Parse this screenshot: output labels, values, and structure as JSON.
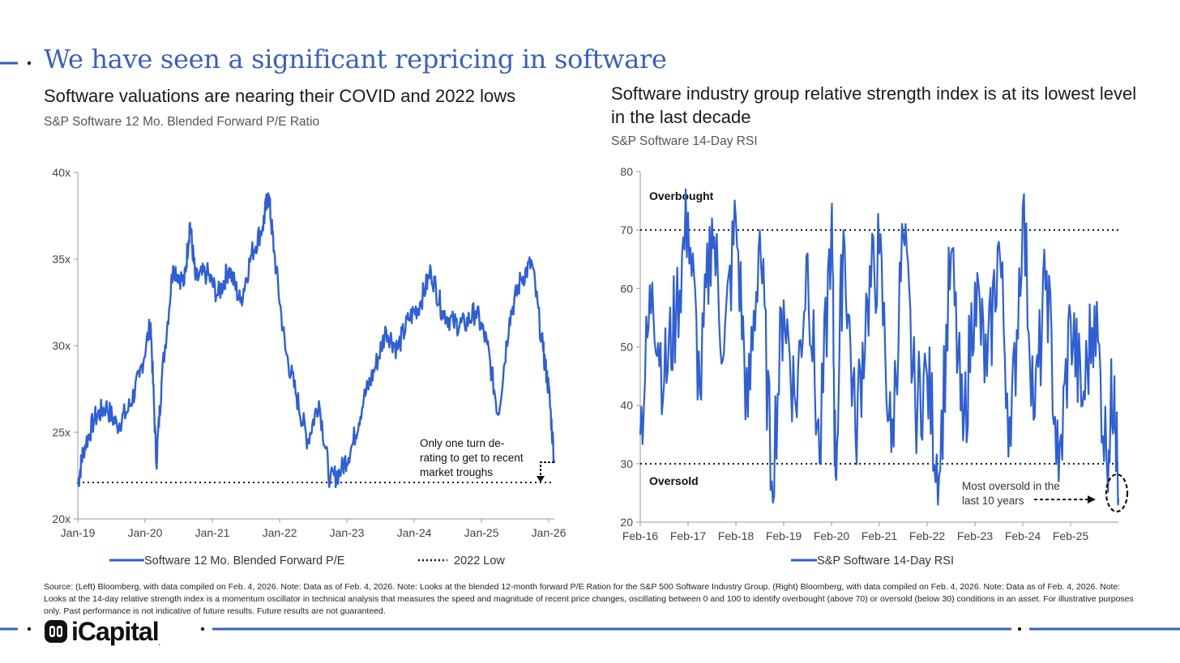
{
  "header": {
    "title": "We have seen a significant repricing in software"
  },
  "colors": {
    "accent": "#3a5fc0",
    "series": "#2e5fd6",
    "text": "#1a1a1a",
    "muted": "#555555"
  },
  "left": {
    "title": "Software valuations are nearing their COVID and 2022 lows",
    "subtitle": "S&P Software 12 Mo. Blended Forward P/E Ratio",
    "annotation": [
      "Only one turn de-",
      "rating to get to recent",
      "market troughs"
    ],
    "legend": {
      "series": "Software 12 Mo. Blended Forward P/E",
      "low": "2022 Low"
    }
  },
  "right": {
    "title": "Software industry group relative strength index is at its lowest level in the last decade",
    "subtitle": "S&P Software 14-Day RSI",
    "overbought_label": "Overbought",
    "oversold_label": "Oversold",
    "annotation": [
      "Most oversold in the",
      "last 10 years"
    ],
    "legend": {
      "series": "S&P Software 14-Day RSI"
    }
  },
  "chart_data": [
    {
      "type": "line",
      "title": "Software valuations are nearing their COVID and 2022 lows",
      "subtitle": "S&P Software 12 Mo. Blended Forward P/E Ratio",
      "x_ticks": [
        "Jan-19",
        "Jan-20",
        "Jan-21",
        "Jan-22",
        "Jan-23",
        "Jan-24",
        "Jan-25",
        "Jan-26"
      ],
      "y_ticks": [
        "20x",
        "25x",
        "30x",
        "35x",
        "40x"
      ],
      "ylim": [
        20,
        40
      ],
      "xlim": [
        "2019-01",
        "2026-02"
      ],
      "reference_line": {
        "name": "2022 Low",
        "value": 22.1
      },
      "series": [
        {
          "name": "Software 12 Mo. Blended Forward P/E",
          "x": [
            "2019-01",
            "2019-02",
            "2019-04",
            "2019-06",
            "2019-08",
            "2019-10",
            "2019-12",
            "2020-02",
            "2020-03",
            "2020-04",
            "2020-06",
            "2020-08",
            "2020-09",
            "2020-10",
            "2020-12",
            "2021-02",
            "2021-04",
            "2021-06",
            "2021-08",
            "2021-10",
            "2021-11",
            "2021-12",
            "2022-02",
            "2022-04",
            "2022-06",
            "2022-08",
            "2022-10",
            "2022-12",
            "2023-02",
            "2023-04",
            "2023-06",
            "2023-08",
            "2023-10",
            "2023-12",
            "2024-02",
            "2024-04",
            "2024-06",
            "2024-08",
            "2024-10",
            "2024-12",
            "2025-02",
            "2025-04",
            "2025-06",
            "2025-08",
            "2025-10",
            "2025-12",
            "2026-01",
            "2026-02"
          ],
          "values": [
            22.0,
            24.0,
            25.8,
            26.5,
            25.4,
            26.3,
            28.2,
            31.3,
            23.2,
            28.2,
            34.6,
            33.6,
            37.1,
            33.8,
            34.2,
            32.9,
            34.5,
            32.5,
            35.3,
            36.9,
            38.8,
            35.5,
            29.8,
            27.1,
            24.5,
            26.8,
            22.2,
            22.8,
            24.3,
            26.9,
            28.7,
            30.9,
            29.8,
            31.5,
            32.4,
            34.3,
            32.0,
            31.3,
            31.2,
            32.0,
            30.1,
            26.0,
            31.6,
            33.8,
            34.8,
            29.7,
            27.5,
            23.4
          ]
        }
      ]
    },
    {
      "type": "line",
      "title": "Software industry group relative strength index is at its lowest level in the last decade",
      "subtitle": "S&P Software 14-Day RSI",
      "x_ticks": [
        "Feb-16",
        "Feb-17",
        "Feb-18",
        "Feb-19",
        "Feb-20",
        "Feb-21",
        "Feb-22",
        "Feb-23",
        "Feb-24",
        "Feb-25"
      ],
      "y_ticks": [
        "20",
        "30",
        "40",
        "50",
        "60",
        "70",
        "80"
      ],
      "ylim": [
        20,
        80
      ],
      "xlim": [
        "2016-02",
        "2026-02"
      ],
      "reference_lines": [
        {
          "name": "Overbought",
          "value": 70
        },
        {
          "name": "Oversold",
          "value": 30
        }
      ],
      "series": [
        {
          "name": "S&P Software 14-Day RSI",
          "x": [
            "2016-02",
            "2016-05",
            "2016-08",
            "2016-11",
            "2017-02",
            "2017-05",
            "2017-08",
            "2017-11",
            "2018-02",
            "2018-05",
            "2018-08",
            "2018-11",
            "2019-02",
            "2019-05",
            "2019-08",
            "2019-11",
            "2020-02",
            "2020-03",
            "2020-05",
            "2020-08",
            "2020-11",
            "2021-02",
            "2021-05",
            "2021-08",
            "2021-11",
            "2022-02",
            "2022-05",
            "2022-08",
            "2022-11",
            "2023-02",
            "2023-05",
            "2023-08",
            "2023-11",
            "2024-02",
            "2024-05",
            "2024-08",
            "2024-11",
            "2025-02",
            "2025-05",
            "2025-08",
            "2025-11",
            "2026-01",
            "2026-02"
          ],
          "values": [
            35,
            61,
            44,
            56,
            73,
            42,
            72,
            49,
            72,
            38,
            70,
            27,
            58,
            40,
            66,
            30,
            72,
            28,
            70,
            35,
            58,
            66,
            32,
            69,
            40,
            45,
            28,
            66,
            34,
            61,
            45,
            68,
            33,
            74,
            38,
            63,
            27,
            55,
            40,
            57,
            31,
            45,
            24
          ]
        }
      ]
    }
  ]
}
